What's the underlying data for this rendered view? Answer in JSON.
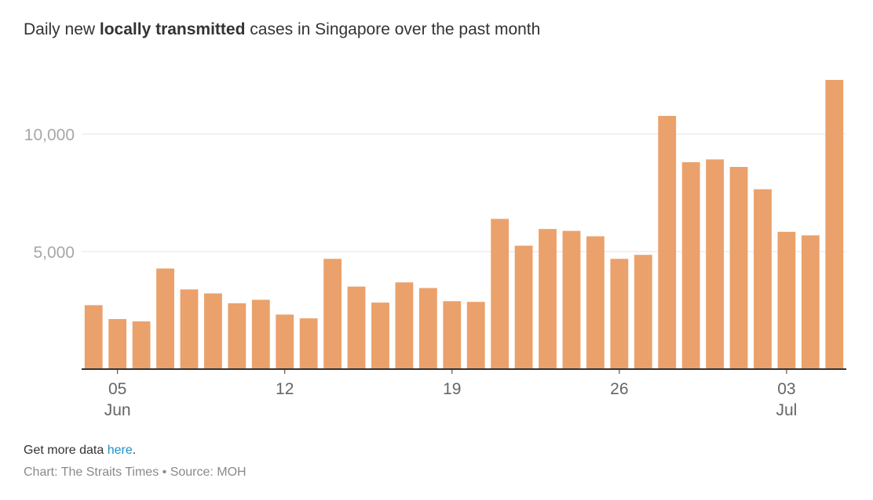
{
  "title": {
    "prefix": "Daily new ",
    "bold": "locally transmitted",
    "suffix": " cases in Singapore over the past month"
  },
  "footer": {
    "more_prefix": "Get more data ",
    "more_link": "here",
    "more_suffix": ".",
    "credit": "Chart: The Straits Times • Source: MOH"
  },
  "colors": {
    "bar": "#eba16b",
    "grid": "#e6e6e6",
    "axis": "#333333"
  },
  "chart_data": {
    "type": "bar",
    "title": "Daily new locally transmitted cases in Singapore over the past month",
    "xlabel": "",
    "ylabel": "",
    "ylim": [
      0,
      12500
    ],
    "yticks": [
      {
        "value": 5000,
        "label": "5,000"
      },
      {
        "value": 10000,
        "label": "10,000"
      }
    ],
    "xticks": [
      {
        "category": "Jun 05",
        "label": "05",
        "sublabel": "Jun"
      },
      {
        "category": "Jun 12",
        "label": "12",
        "sublabel": ""
      },
      {
        "category": "Jun 19",
        "label": "19",
        "sublabel": ""
      },
      {
        "category": "Jun 26",
        "label": "26",
        "sublabel": ""
      },
      {
        "category": "Jul 03",
        "label": "03",
        "sublabel": "Jul"
      }
    ],
    "grid": true,
    "categories": [
      "Jun 04",
      "Jun 05",
      "Jun 06",
      "Jun 07",
      "Jun 08",
      "Jun 09",
      "Jun 10",
      "Jun 11",
      "Jun 12",
      "Jun 13",
      "Jun 14",
      "Jun 15",
      "Jun 16",
      "Jun 17",
      "Jun 18",
      "Jun 19",
      "Jun 20",
      "Jun 21",
      "Jun 22",
      "Jun 23",
      "Jun 24",
      "Jun 25",
      "Jun 26",
      "Jun 27",
      "Jun 28",
      "Jun 29",
      "Jun 30",
      "Jul 01",
      "Jul 02",
      "Jul 03",
      "Jul 04",
      "Jul 05"
    ],
    "values": [
      2720,
      2130,
      2030,
      4280,
      3390,
      3220,
      2800,
      2950,
      2320,
      2160,
      4690,
      3510,
      2830,
      3690,
      3450,
      2890,
      2860,
      6390,
      5250,
      5960,
      5880,
      5650,
      4690,
      4860,
      10770,
      8800,
      8920,
      8600,
      7650,
      5840,
      5690,
      12300
    ]
  }
}
